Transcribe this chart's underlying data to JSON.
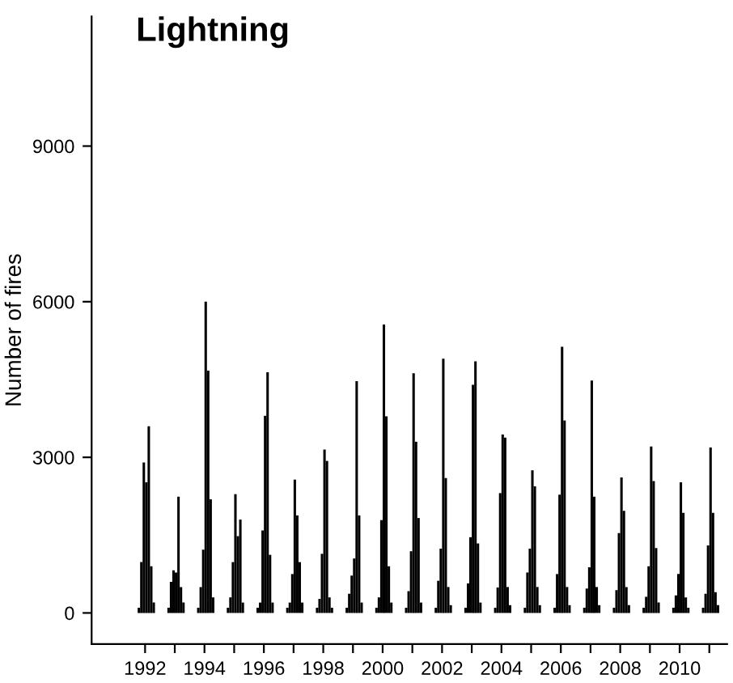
{
  "chart_data": {
    "type": "bar",
    "title": "Lightning",
    "ylabel": "Number of fires",
    "color": "#000000",
    "x": [
      1992.292,
      1992.375,
      1992.458,
      1992.542,
      1992.625,
      1992.708,
      1992.792,
      1993.292,
      1993.375,
      1993.458,
      1993.542,
      1993.625,
      1993.708,
      1993.792,
      1994.292,
      1994.375,
      1994.458,
      1994.542,
      1994.625,
      1994.708,
      1994.792,
      1995.292,
      1995.375,
      1995.458,
      1995.542,
      1995.625,
      1995.708,
      1995.792,
      1996.292,
      1996.375,
      1996.458,
      1996.542,
      1996.625,
      1996.708,
      1996.792,
      1997.292,
      1997.375,
      1997.458,
      1997.542,
      1997.625,
      1997.708,
      1997.792,
      1998.292,
      1998.375,
      1998.458,
      1998.542,
      1998.625,
      1998.708,
      1998.792,
      1999.292,
      1999.375,
      1999.458,
      1999.542,
      1999.625,
      1999.708,
      1999.792,
      2000.292,
      2000.375,
      2000.458,
      2000.542,
      2000.625,
      2000.708,
      2000.792,
      2001.292,
      2001.375,
      2001.458,
      2001.542,
      2001.625,
      2001.708,
      2001.792,
      2002.292,
      2002.375,
      2002.458,
      2002.542,
      2002.625,
      2002.708,
      2002.792,
      2003.292,
      2003.375,
      2003.458,
      2003.542,
      2003.625,
      2003.708,
      2003.792,
      2004.292,
      2004.375,
      2004.458,
      2004.542,
      2004.625,
      2004.708,
      2004.792,
      2005.292,
      2005.375,
      2005.458,
      2005.542,
      2005.625,
      2005.708,
      2005.792,
      2006.292,
      2006.375,
      2006.458,
      2006.542,
      2006.625,
      2006.708,
      2006.792,
      2007.292,
      2007.375,
      2007.458,
      2007.542,
      2007.625,
      2007.708,
      2007.792,
      2008.292,
      2008.375,
      2008.458,
      2008.542,
      2008.625,
      2008.708,
      2008.792,
      2009.292,
      2009.375,
      2009.458,
      2009.542,
      2009.625,
      2009.708,
      2009.792,
      2010.292,
      2010.375,
      2010.458,
      2010.542,
      2010.625,
      2010.708,
      2010.792,
      2011.292,
      2011.375,
      2011.458,
      2011.542,
      2011.625,
      2011.708,
      2011.792
    ],
    "values": [
      100,
      980,
      2900,
      2520,
      3600,
      900,
      200,
      100,
      600,
      820,
      780,
      2240,
      500,
      200,
      100,
      500,
      1220,
      6000,
      4670,
      2190,
      300,
      100,
      300,
      980,
      2290,
      1480,
      1800,
      200,
      100,
      200,
      1590,
      3800,
      4640,
      1120,
      200,
      100,
      200,
      750,
      2570,
      1880,
      980,
      200,
      100,
      270,
      1140,
      3150,
      2930,
      300,
      100,
      100,
      370,
      720,
      1050,
      4470,
      1880,
      200,
      100,
      300,
      1790,
      5560,
      3790,
      900,
      200,
      100,
      420,
      1190,
      4620,
      3300,
      1830,
      200,
      100,
      620,
      1240,
      4900,
      2600,
      500,
      150,
      100,
      570,
      1460,
      4400,
      4850,
      1340,
      200,
      100,
      490,
      2310,
      3440,
      3380,
      500,
      150,
      100,
      780,
      1240,
      2750,
      2440,
      500,
      150,
      100,
      750,
      2280,
      5130,
      3710,
      500,
      150,
      100,
      470,
      880,
      4480,
      2240,
      500,
      150,
      100,
      440,
      1540,
      2610,
      1970,
      500,
      150,
      100,
      310,
      900,
      3210,
      2540,
      1250,
      200,
      100,
      340,
      750,
      2520,
      1930,
      300,
      100,
      100,
      370,
      1300,
      3190,
      1930,
      400,
      150
    ],
    "xlim": [
      1990.7,
      2012.1
    ],
    "xticks": [
      {
        "value": 1992.5,
        "label": "1992"
      },
      {
        "value": 1993.5,
        "label": null
      },
      {
        "value": 1994.5,
        "label": "1994"
      },
      {
        "value": 1995.5,
        "label": null
      },
      {
        "value": 1996.5,
        "label": "1996"
      },
      {
        "value": 1997.5,
        "label": null
      },
      {
        "value": 1998.5,
        "label": "1998"
      },
      {
        "value": 1999.5,
        "label": null
      },
      {
        "value": 2000.5,
        "label": "2000"
      },
      {
        "value": 2001.5,
        "label": null
      },
      {
        "value": 2002.5,
        "label": "2002"
      },
      {
        "value": 2003.5,
        "label": null
      },
      {
        "value": 2004.5,
        "label": "2004"
      },
      {
        "value": 2005.5,
        "label": null
      },
      {
        "value": 2006.5,
        "label": "2006"
      },
      {
        "value": 2007.5,
        "label": null
      },
      {
        "value": 2008.5,
        "label": "2008"
      },
      {
        "value": 2009.5,
        "label": null
      },
      {
        "value": 2010.5,
        "label": "2010"
      },
      {
        "value": 2011.5,
        "label": null
      }
    ],
    "ylim": [
      -600,
      11500
    ],
    "yticks": [
      0,
      3000,
      6000,
      9000
    ],
    "grid": false,
    "legend": false
  }
}
